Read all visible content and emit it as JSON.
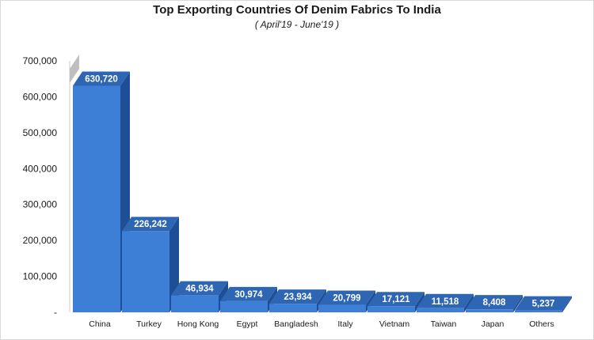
{
  "chart_data": {
    "type": "bar",
    "title": "Top Exporting Countries Of Denim Fabrics To India",
    "subtitle": "( April'19 - June'19 )",
    "categories": [
      "China",
      "Turkey",
      "Hong Kong",
      "Egypt",
      "Bangladesh",
      "Italy",
      "Vietnam",
      "Taiwan",
      "Japan",
      "Others"
    ],
    "values": [
      630720,
      226242,
      46934,
      30974,
      23934,
      20799,
      17121,
      11518,
      8408,
      5237
    ],
    "value_labels": [
      "630,720",
      "226,242",
      "46,934",
      "30,974",
      "23,934",
      "20,799",
      "17,121",
      "11,518",
      "8,408",
      "5,237"
    ],
    "y_ticks": [
      {
        "value": 0,
        "label": "-"
      },
      {
        "value": 100000,
        "label": "100,000"
      },
      {
        "value": 200000,
        "label": "200,000"
      },
      {
        "value": 300000,
        "label": "300,000"
      },
      {
        "value": 400000,
        "label": "400,000"
      },
      {
        "value": 500000,
        "label": "500,000"
      },
      {
        "value": 600000,
        "label": "600,000"
      },
      {
        "value": 700000,
        "label": "700,000"
      }
    ],
    "ylim": [
      0,
      700000
    ],
    "xlabel": "",
    "ylabel": "",
    "grid": false,
    "legend": "none",
    "style": "3d",
    "colors": {
      "bar_front": "#3d7fd6",
      "bar_top": "#2f66b3",
      "bar_side": "#1e4e96",
      "wall_edge": "#bfbfbf",
      "text": "#1a1a1a"
    }
  }
}
